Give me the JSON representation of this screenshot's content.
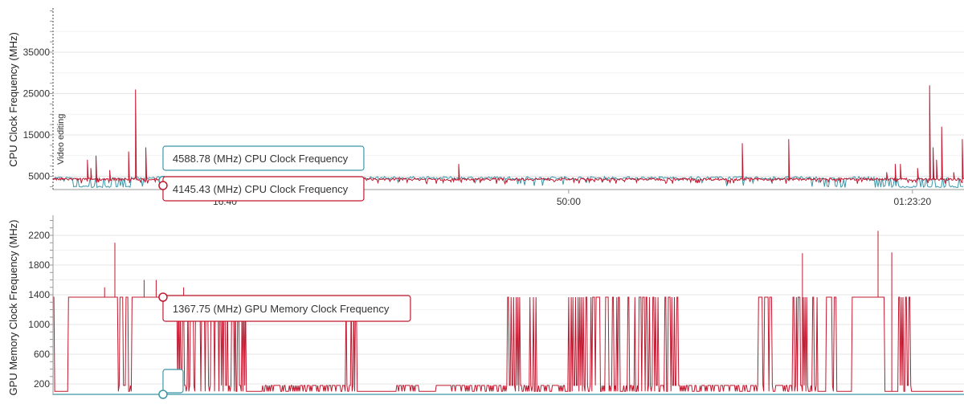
{
  "colors": {
    "red": "#c0182f",
    "teal": "#3d97a8",
    "grid": "#e5e5e5",
    "axis": "#999999",
    "text": "#333333"
  },
  "chart_data": [
    {
      "type": "line",
      "ylabel": "CPU Clock Frequency (MHz)",
      "ylim": [
        0,
        45000
      ],
      "yticks": [
        5000,
        15000,
        25000,
        35000
      ],
      "ytick_labels": [
        "5000",
        "15000",
        "25000",
        "35000"
      ],
      "xlim_seconds": [
        0,
        5300
      ],
      "xticks_seconds": [
        1000,
        3000,
        5000
      ],
      "xtick_labels": [
        "16:40",
        "50:00",
        "01:23:20"
      ],
      "grid": true,
      "annotation": {
        "text": "Video editing",
        "x_seconds": 0
      },
      "series": [
        {
          "color": "red",
          "typical": 4300,
          "low": 3200,
          "high": 5000,
          "spikes": [
            [
              200,
              9000
            ],
            [
              220,
              7000
            ],
            [
              250,
              10000
            ],
            [
              330,
              6500
            ],
            [
              440,
              11000
            ],
            [
              480,
              26000
            ],
            [
              540,
              12000
            ],
            [
              2360,
              8000
            ],
            [
              4010,
              13000
            ],
            [
              4280,
              14000
            ],
            [
              4850,
              6000
            ],
            [
              4900,
              8000
            ],
            [
              4930,
              8000
            ],
            [
              5030,
              7000
            ],
            [
              5100,
              27000
            ],
            [
              5120,
              12000
            ],
            [
              5140,
              9000
            ],
            [
              5170,
              17000
            ],
            [
              5240,
              6000
            ],
            [
              5290,
              14000
            ]
          ]
        },
        {
          "color": "teal",
          "typical": 4600,
          "low": 2200,
          "high": 5000,
          "spikes": []
        }
      ],
      "tooltips": [
        {
          "text": "4588.78 (MHz) CPU Clock Frequency",
          "color": "teal",
          "x_seconds": 640,
          "value": 4588.78
        },
        {
          "text": "4145.43 (MHz) CPU Clock Frequency",
          "color": "red",
          "x_seconds": 640,
          "value": 4145.43
        }
      ]
    },
    {
      "type": "line",
      "ylabel": "GPU Memory Clock Frequency (MHz)",
      "ylim": [
        60,
        2400
      ],
      "yticks": [
        200,
        600,
        1000,
        1400,
        1800,
        2200
      ],
      "ytick_labels": [
        "200",
        "600",
        "1000",
        "1400",
        "1800",
        "2200"
      ],
      "grid": true,
      "series": [
        {
          "color": "red",
          "high_value": 1367.75,
          "low_value": 100,
          "mid_value": 180,
          "spikes": [
            [
              300,
              1500
            ],
            [
              360,
              2100
            ],
            [
              530,
              1600
            ],
            [
              600,
              1600
            ],
            [
              760,
              1500
            ],
            [
              4360,
              1960
            ],
            [
              4800,
              2260
            ],
            [
              4880,
              1970
            ]
          ]
        },
        {
          "color": "teal",
          "value": 60
        }
      ],
      "tooltips": [
        {
          "text": "1367.75 (MHz) GPU Memory Clock Frequency",
          "color": "red",
          "x_seconds": 640,
          "value": 1367.75
        },
        {
          "text": "",
          "color": "teal",
          "x_seconds": 640,
          "value": 60
        }
      ]
    }
  ]
}
